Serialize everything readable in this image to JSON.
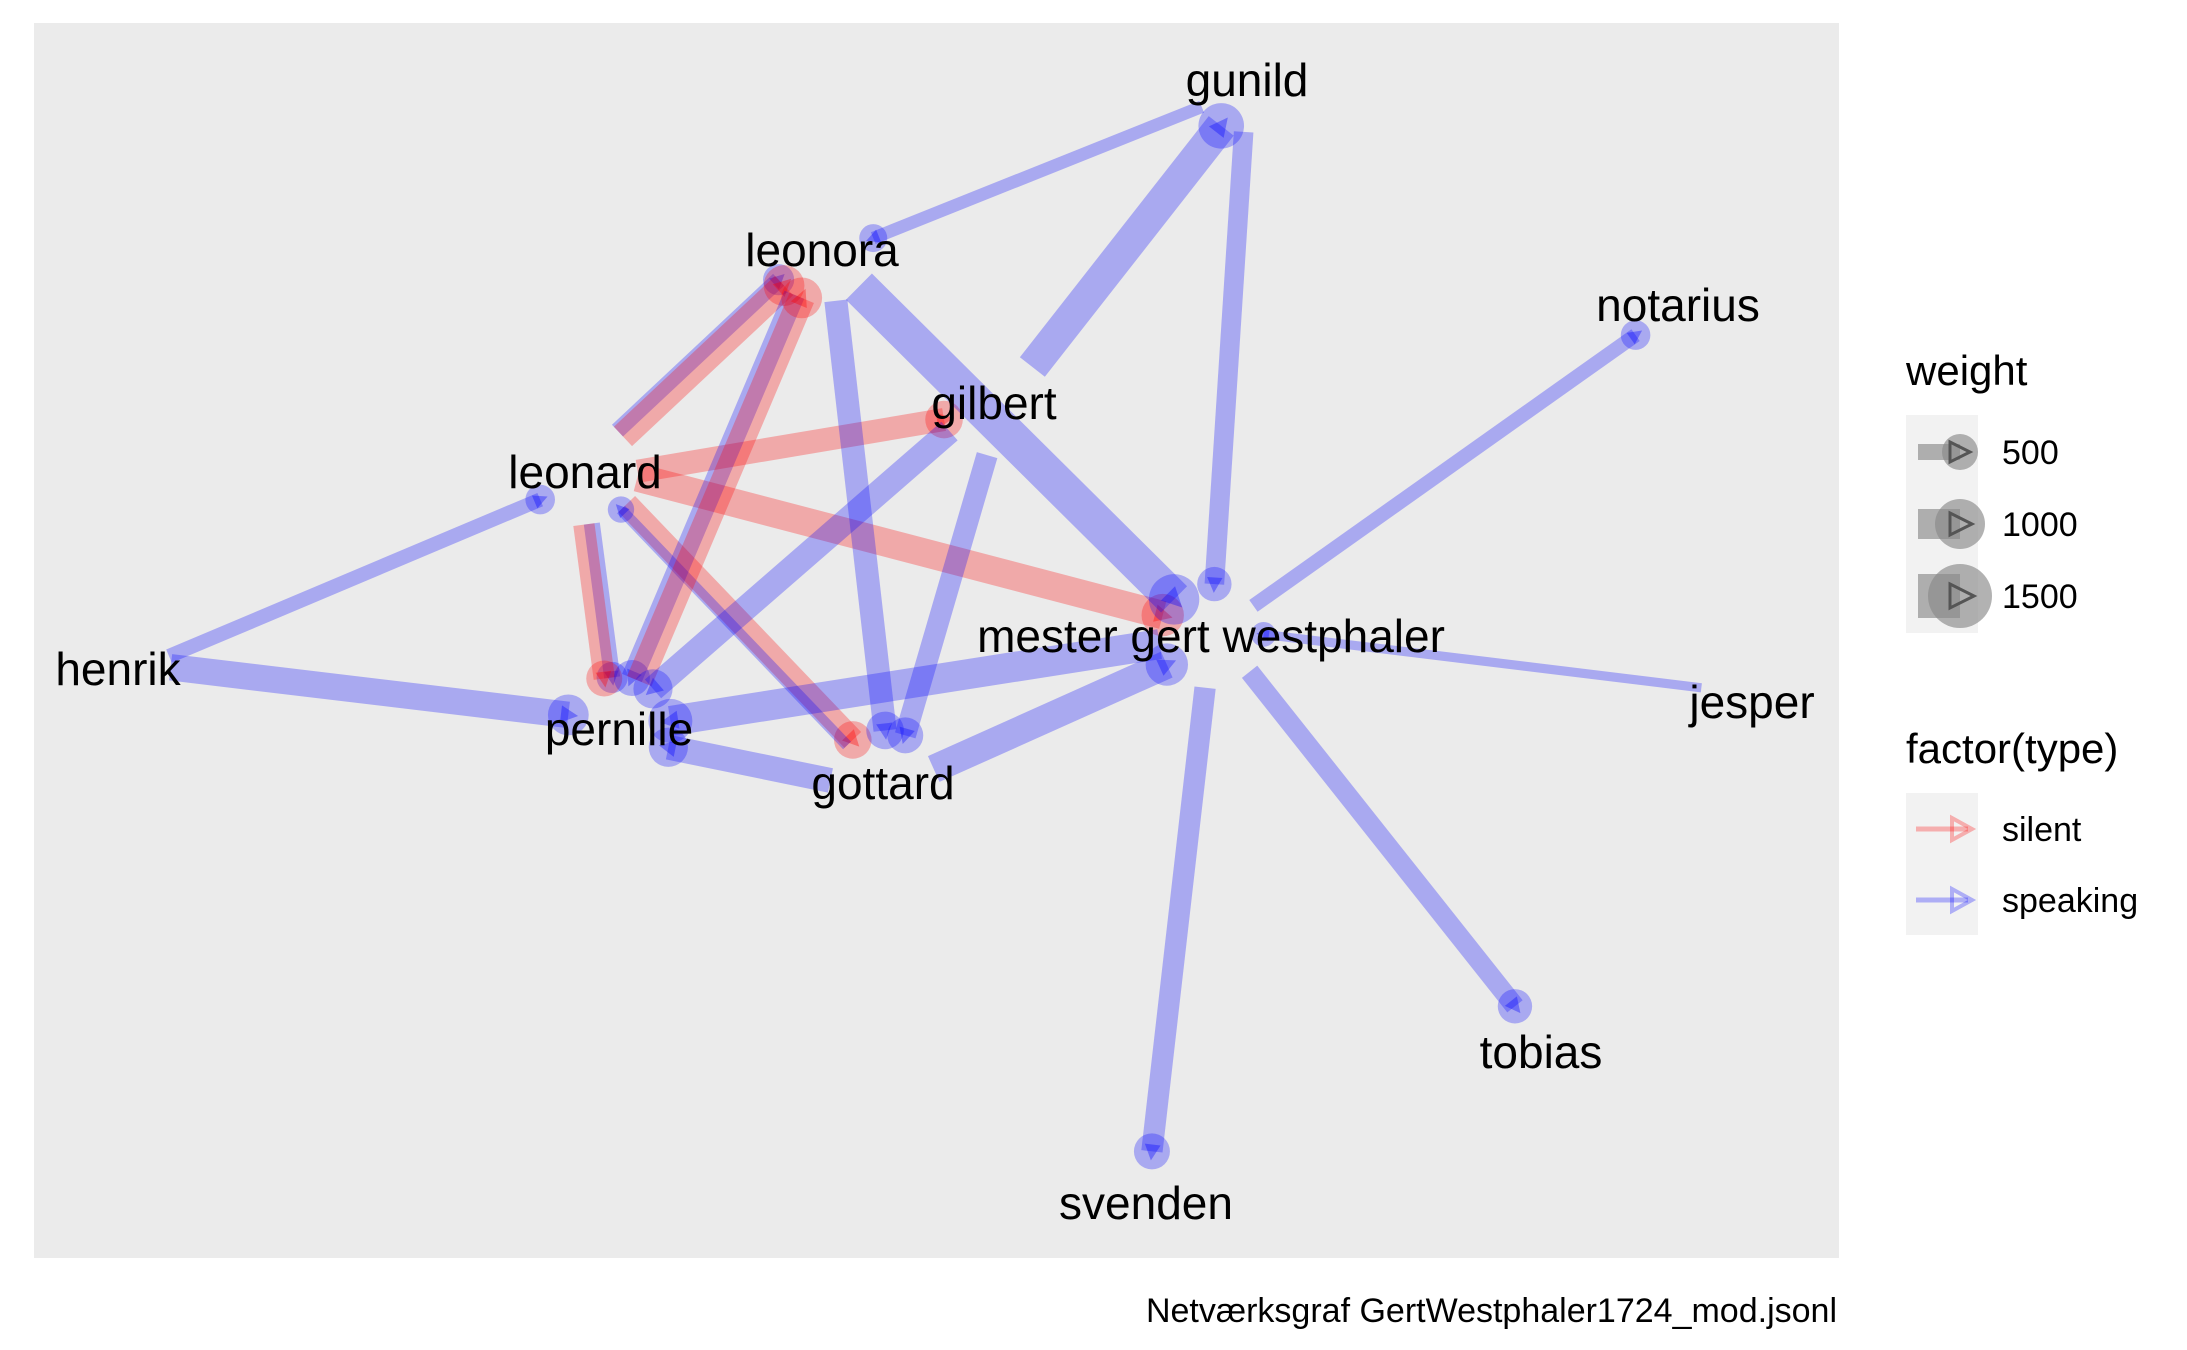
{
  "caption": "Netværksgraf GertWestphaler1724_mod.jsonl",
  "colors": {
    "panel": "#EBEBEB",
    "speaking": "#0000FF",
    "silent": "#FF0000",
    "legend_key_bg": "#F2F2F2",
    "legend_swatch": "#888888"
  },
  "legend": {
    "weight": {
      "title": "weight",
      "items": [
        "500",
        "1000",
        "1500"
      ]
    },
    "type": {
      "title": "factor(type)",
      "items": [
        "silent",
        "speaking"
      ]
    }
  },
  "nodes": [
    {
      "id": "gunild",
      "label": "gunild"
    },
    {
      "id": "leonora",
      "label": "leonora"
    },
    {
      "id": "notarius",
      "label": "notarius"
    },
    {
      "id": "gilbert",
      "label": "gilbert"
    },
    {
      "id": "leonard",
      "label": "leonard"
    },
    {
      "id": "henrik",
      "label": "henrik"
    },
    {
      "id": "mester",
      "label": "mester gert westphaler"
    },
    {
      "id": "jesper",
      "label": "jesper"
    },
    {
      "id": "pernille",
      "label": "pernille"
    },
    {
      "id": "gottard",
      "label": "gottard"
    },
    {
      "id": "tobias",
      "label": "tobias"
    },
    {
      "id": "svenden",
      "label": "svenden"
    }
  ],
  "edges": [
    {
      "source": "gunild",
      "target": "leonora",
      "type": "speaking",
      "weight": 500
    },
    {
      "source": "gunild",
      "target": "mester",
      "type": "speaking",
      "weight": 900
    },
    {
      "source": "gilbert",
      "target": "gunild",
      "type": "speaking",
      "weight": 1600
    },
    {
      "source": "leonard",
      "target": "leonora",
      "type": "speaking",
      "weight": 700
    },
    {
      "source": "leonard",
      "target": "leonora",
      "type": "silent",
      "weight": 1300
    },
    {
      "source": "leonard",
      "target": "gilbert",
      "type": "silent",
      "weight": 1100
    },
    {
      "source": "leonard",
      "target": "mester",
      "type": "silent",
      "weight": 1400
    },
    {
      "source": "leonard",
      "target": "pernille",
      "type": "speaking",
      "weight": 700
    },
    {
      "source": "leonard",
      "target": "pernille",
      "type": "silent",
      "weight": 1000
    },
    {
      "source": "leonard",
      "target": "gottard",
      "type": "silent",
      "weight": 1100
    },
    {
      "source": "gottard",
      "target": "leonard",
      "type": "speaking",
      "weight": 400
    },
    {
      "source": "henrik",
      "target": "leonard",
      "type": "speaking",
      "weight": 600
    },
    {
      "source": "henrik",
      "target": "pernille",
      "type": "speaking",
      "weight": 1300
    },
    {
      "source": "leonora",
      "target": "mester",
      "type": "speaking",
      "weight": 1900
    },
    {
      "source": "leonora",
      "target": "pernille",
      "type": "speaking",
      "weight": 1000
    },
    {
      "source": "leonora",
      "target": "gottard",
      "type": "speaking",
      "weight": 1100
    },
    {
      "source": "pernille",
      "target": "leonora",
      "type": "silent",
      "weight": 1300
    },
    {
      "source": "gilbert",
      "target": "pernille",
      "type": "speaking",
      "weight": 1200
    },
    {
      "source": "gilbert",
      "target": "gottard",
      "type": "speaking",
      "weight": 1000
    },
    {
      "source": "mester",
      "target": "pernille",
      "type": "speaking",
      "weight": 1500
    },
    {
      "source": "gottard",
      "target": "mester",
      "type": "speaking",
      "weight": 1400
    },
    {
      "source": "gottard",
      "target": "pernille",
      "type": "speaking",
      "weight": 1200
    },
    {
      "source": "mester",
      "target": "notarius",
      "type": "speaking",
      "weight": 600
    },
    {
      "source": "jesper",
      "target": "mester",
      "type": "speaking",
      "weight": 300
    },
    {
      "source": "mester",
      "target": "tobias",
      "type": "speaking",
      "weight": 900
    },
    {
      "source": "mester",
      "target": "svenden",
      "type": "speaking",
      "weight": 1000
    }
  ]
}
